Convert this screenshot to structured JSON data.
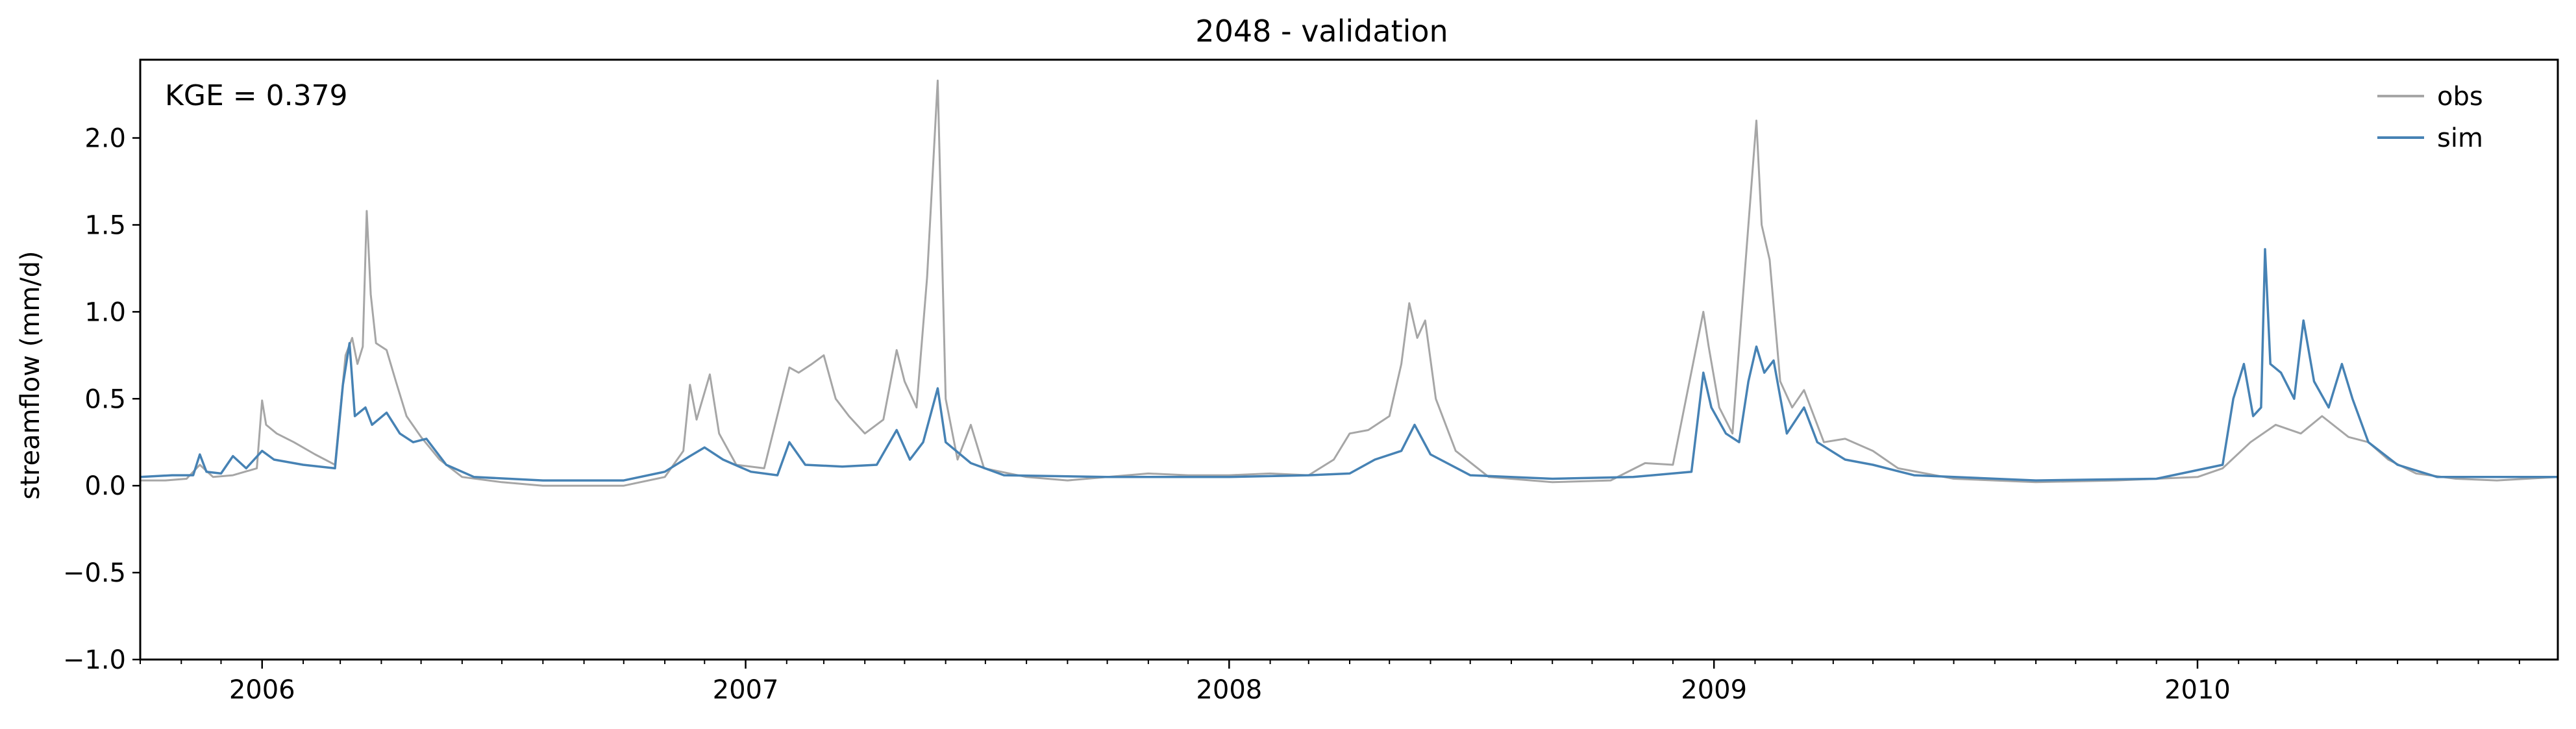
{
  "chart_data": {
    "type": "line",
    "title": "2048 - validation",
    "xlabel": "",
    "ylabel": "streamflow (mm/d)",
    "annotation": "KGE = 0.379",
    "x_ticks": [
      "2006",
      "2007",
      "2008",
      "2009",
      "2010"
    ],
    "x_tick_dates": [
      "2006-01-01",
      "2007-01-01",
      "2008-01-01",
      "2009-01-01",
      "2010-01-01"
    ],
    "xlim": [
      "2005-10-01",
      "2010-09-30"
    ],
    "y_ticks": [
      "−1.0",
      "−0.5",
      "0.0",
      "0.5",
      "1.0",
      "1.5",
      "2.0"
    ],
    "y_tick_values": [
      -1.0,
      -0.5,
      0.0,
      0.5,
      1.0,
      1.5,
      2.0
    ],
    "ylim": [
      -1.0,
      2.45
    ],
    "legend": {
      "placement": "top-right",
      "entries": [
        "obs",
        "sim"
      ]
    },
    "grid": false,
    "colors": {
      "obs": "#a6a6a6",
      "sim": "#4682b4"
    },
    "series": [
      {
        "name": "obs",
        "points": [
          [
            "2005-10-01",
            0.03
          ],
          [
            "2005-10-20",
            0.03
          ],
          [
            "2005-11-05",
            0.04
          ],
          [
            "2005-11-15",
            0.12
          ],
          [
            "2005-11-25",
            0.05
          ],
          [
            "2005-12-10",
            0.06
          ],
          [
            "2005-12-28",
            0.1
          ],
          [
            "2006-01-01",
            0.49
          ],
          [
            "2006-01-04",
            0.35
          ],
          [
            "2006-01-12",
            0.3
          ],
          [
            "2006-01-25",
            0.25
          ],
          [
            "2006-02-10",
            0.18
          ],
          [
            "2006-02-25",
            0.12
          ],
          [
            "2006-03-05",
            0.75
          ],
          [
            "2006-03-10",
            0.85
          ],
          [
            "2006-03-14",
            0.7
          ],
          [
            "2006-03-18",
            0.8
          ],
          [
            "2006-03-21",
            1.58
          ],
          [
            "2006-03-24",
            1.1
          ],
          [
            "2006-03-28",
            0.82
          ],
          [
            "2006-04-05",
            0.78
          ],
          [
            "2006-04-12",
            0.6
          ],
          [
            "2006-04-20",
            0.4
          ],
          [
            "2006-05-01",
            0.28
          ],
          [
            "2006-05-15",
            0.15
          ],
          [
            "2006-06-01",
            0.05
          ],
          [
            "2006-07-01",
            0.02
          ],
          [
            "2006-08-01",
            0.0
          ],
          [
            "2006-09-01",
            0.0
          ],
          [
            "2006-10-01",
            0.0
          ],
          [
            "2006-11-01",
            0.05
          ],
          [
            "2006-11-15",
            0.2
          ],
          [
            "2006-11-20",
            0.58
          ],
          [
            "2006-11-25",
            0.38
          ],
          [
            "2006-12-05",
            0.64
          ],
          [
            "2006-12-12",
            0.3
          ],
          [
            "2006-12-25",
            0.12
          ],
          [
            "2007-01-15",
            0.1
          ],
          [
            "2007-02-03",
            0.68
          ],
          [
            "2007-02-10",
            0.65
          ],
          [
            "2007-02-20",
            0.7
          ],
          [
            "2007-03-01",
            0.75
          ],
          [
            "2007-03-10",
            0.5
          ],
          [
            "2007-03-20",
            0.4
          ],
          [
            "2007-04-01",
            0.3
          ],
          [
            "2007-04-15",
            0.38
          ],
          [
            "2007-04-25",
            0.78
          ],
          [
            "2007-05-01",
            0.6
          ],
          [
            "2007-05-10",
            0.45
          ],
          [
            "2007-05-18",
            1.2
          ],
          [
            "2007-05-26",
            2.33
          ],
          [
            "2007-06-01",
            0.5
          ],
          [
            "2007-06-10",
            0.15
          ],
          [
            "2007-06-20",
            0.35
          ],
          [
            "2007-06-30",
            0.1
          ],
          [
            "2007-08-01",
            0.05
          ],
          [
            "2007-09-01",
            0.03
          ],
          [
            "2007-10-01",
            0.05
          ],
          [
            "2007-11-01",
            0.07
          ],
          [
            "2007-12-01",
            0.06
          ],
          [
            "2008-01-01",
            0.06
          ],
          [
            "2008-02-01",
            0.07
          ],
          [
            "2008-03-01",
            0.06
          ],
          [
            "2008-03-20",
            0.15
          ],
          [
            "2008-04-01",
            0.3
          ],
          [
            "2008-04-15",
            0.32
          ],
          [
            "2008-05-01",
            0.4
          ],
          [
            "2008-05-10",
            0.7
          ],
          [
            "2008-05-16",
            1.05
          ],
          [
            "2008-05-22",
            0.85
          ],
          [
            "2008-05-28",
            0.95
          ],
          [
            "2008-06-05",
            0.5
          ],
          [
            "2008-06-20",
            0.2
          ],
          [
            "2008-07-15",
            0.05
          ],
          [
            "2008-09-01",
            0.02
          ],
          [
            "2008-10-15",
            0.03
          ],
          [
            "2008-11-10",
            0.13
          ],
          [
            "2008-12-01",
            0.12
          ],
          [
            "2008-12-24",
            1.0
          ],
          [
            "2008-12-28",
            0.8
          ],
          [
            "2009-01-05",
            0.45
          ],
          [
            "2009-01-15",
            0.3
          ],
          [
            "2009-01-25",
            1.3
          ],
          [
            "2009-02-02",
            2.1
          ],
          [
            "2009-02-06",
            1.5
          ],
          [
            "2009-02-12",
            1.3
          ],
          [
            "2009-02-20",
            0.6
          ],
          [
            "2009-03-01",
            0.45
          ],
          [
            "2009-03-10",
            0.55
          ],
          [
            "2009-03-25",
            0.25
          ],
          [
            "2009-04-10",
            0.27
          ],
          [
            "2009-05-01",
            0.2
          ],
          [
            "2009-05-20",
            0.1
          ],
          [
            "2009-07-01",
            0.04
          ],
          [
            "2009-09-01",
            0.02
          ],
          [
            "2009-11-01",
            0.03
          ],
          [
            "2010-01-01",
            0.05
          ],
          [
            "2010-01-20",
            0.1
          ],
          [
            "2010-02-10",
            0.25
          ],
          [
            "2010-03-01",
            0.35
          ],
          [
            "2010-03-20",
            0.3
          ],
          [
            "2010-04-05",
            0.4
          ],
          [
            "2010-04-25",
            0.28
          ],
          [
            "2010-05-10",
            0.25
          ],
          [
            "2010-05-25",
            0.15
          ],
          [
            "2010-06-15",
            0.07
          ],
          [
            "2010-07-15",
            0.04
          ],
          [
            "2010-08-15",
            0.03
          ],
          [
            "2010-09-30",
            0.05
          ]
        ]
      },
      {
        "name": "sim",
        "points": [
          [
            "2005-10-01",
            0.05
          ],
          [
            "2005-10-25",
            0.06
          ],
          [
            "2005-11-10",
            0.06
          ],
          [
            "2005-11-15",
            0.18
          ],
          [
            "2005-11-20",
            0.08
          ],
          [
            "2005-12-01",
            0.07
          ],
          [
            "2005-12-10",
            0.17
          ],
          [
            "2005-12-20",
            0.1
          ],
          [
            "2006-01-01",
            0.2
          ],
          [
            "2006-01-10",
            0.15
          ],
          [
            "2006-02-01",
            0.12
          ],
          [
            "2006-02-25",
            0.1
          ],
          [
            "2006-03-03",
            0.58
          ],
          [
            "2006-03-08",
            0.82
          ],
          [
            "2006-03-12",
            0.4
          ],
          [
            "2006-03-20",
            0.45
          ],
          [
            "2006-03-25",
            0.35
          ],
          [
            "2006-04-05",
            0.42
          ],
          [
            "2006-04-15",
            0.3
          ],
          [
            "2006-04-25",
            0.25
          ],
          [
            "2006-05-05",
            0.27
          ],
          [
            "2006-05-20",
            0.12
          ],
          [
            "2006-06-10",
            0.05
          ],
          [
            "2006-08-01",
            0.03
          ],
          [
            "2006-10-01",
            0.03
          ],
          [
            "2006-11-01",
            0.08
          ],
          [
            "2006-11-20",
            0.17
          ],
          [
            "2006-12-01",
            0.22
          ],
          [
            "2006-12-15",
            0.15
          ],
          [
            "2007-01-05",
            0.08
          ],
          [
            "2007-01-25",
            0.06
          ],
          [
            "2007-02-03",
            0.25
          ],
          [
            "2007-02-15",
            0.12
          ],
          [
            "2007-03-15",
            0.11
          ],
          [
            "2007-04-10",
            0.12
          ],
          [
            "2007-04-25",
            0.32
          ],
          [
            "2007-05-05",
            0.15
          ],
          [
            "2007-05-15",
            0.25
          ],
          [
            "2007-05-26",
            0.56
          ],
          [
            "2007-06-01",
            0.25
          ],
          [
            "2007-06-20",
            0.13
          ],
          [
            "2007-07-15",
            0.06
          ],
          [
            "2007-10-01",
            0.05
          ],
          [
            "2008-01-01",
            0.05
          ],
          [
            "2008-03-01",
            0.06
          ],
          [
            "2008-04-01",
            0.07
          ],
          [
            "2008-04-20",
            0.15
          ],
          [
            "2008-05-10",
            0.2
          ],
          [
            "2008-05-20",
            0.35
          ],
          [
            "2008-06-01",
            0.18
          ],
          [
            "2008-07-01",
            0.06
          ],
          [
            "2008-09-01",
            0.04
          ],
          [
            "2008-11-01",
            0.05
          ],
          [
            "2008-12-15",
            0.08
          ],
          [
            "2008-12-24",
            0.65
          ],
          [
            "2008-12-30",
            0.45
          ],
          [
            "2009-01-10",
            0.3
          ],
          [
            "2009-01-20",
            0.25
          ],
          [
            "2009-01-27",
            0.6
          ],
          [
            "2009-02-02",
            0.8
          ],
          [
            "2009-02-08",
            0.65
          ],
          [
            "2009-02-15",
            0.72
          ],
          [
            "2009-02-25",
            0.3
          ],
          [
            "2009-03-10",
            0.45
          ],
          [
            "2009-03-20",
            0.25
          ],
          [
            "2009-04-10",
            0.15
          ],
          [
            "2009-05-01",
            0.12
          ],
          [
            "2009-06-01",
            0.06
          ],
          [
            "2009-09-01",
            0.03
          ],
          [
            "2009-12-01",
            0.04
          ],
          [
            "2010-01-20",
            0.12
          ],
          [
            "2010-01-28",
            0.5
          ],
          [
            "2010-02-05",
            0.7
          ],
          [
            "2010-02-12",
            0.4
          ],
          [
            "2010-02-18",
            0.45
          ],
          [
            "2010-02-21",
            1.36
          ],
          [
            "2010-02-25",
            0.7
          ],
          [
            "2010-03-05",
            0.65
          ],
          [
            "2010-03-15",
            0.5
          ],
          [
            "2010-03-22",
            0.95
          ],
          [
            "2010-03-30",
            0.6
          ],
          [
            "2010-04-10",
            0.45
          ],
          [
            "2010-04-20",
            0.7
          ],
          [
            "2010-04-28",
            0.5
          ],
          [
            "2010-05-10",
            0.25
          ],
          [
            "2010-06-01",
            0.12
          ],
          [
            "2010-07-01",
            0.05
          ],
          [
            "2010-09-30",
            0.05
          ]
        ]
      }
    ]
  }
}
